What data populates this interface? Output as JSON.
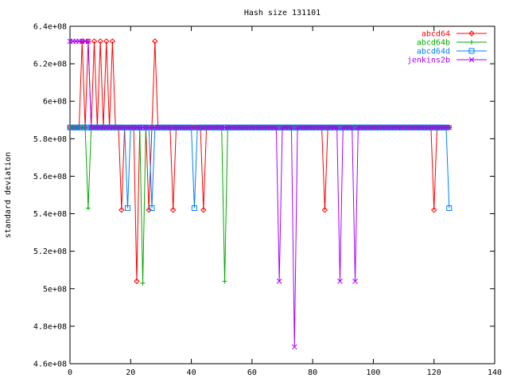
{
  "chart_data": {
    "type": "line",
    "title": "Hash size 131101",
    "xlabel": "",
    "ylabel": "standard deviation",
    "xlim": [
      0,
      140
    ],
    "ylim": [
      460000000,
      640000000
    ],
    "xticks": [
      0,
      20,
      40,
      60,
      80,
      100,
      120,
      140
    ],
    "xtick_labels": [
      "0",
      "20",
      "40",
      "60",
      "80",
      "100",
      "120",
      "140"
    ],
    "yticks": [
      460000000,
      480000000,
      500000000,
      520000000,
      540000000,
      560000000,
      580000000,
      600000000,
      620000000,
      640000000
    ],
    "ytick_labels": [
      "4.6e+08",
      "4.8e+08",
      "5e+08",
      "5.2e+08",
      "5.4e+08",
      "5.6e+08",
      "5.8e+08",
      "6e+08",
      "6.2e+08",
      "6.4e+08"
    ],
    "grid": false,
    "legend_position": "top-right",
    "series": [
      {
        "name": "abcd64",
        "color": "#ff0000",
        "marker": "diamond",
        "x": [
          0,
          1,
          2,
          3,
          4,
          5,
          6,
          7,
          8,
          9,
          10,
          11,
          12,
          13,
          14,
          15,
          16,
          17,
          18,
          19,
          20,
          21,
          22,
          23,
          24,
          25,
          26,
          27,
          28,
          29,
          30,
          31,
          32,
          33,
          34,
          35,
          36,
          37,
          38,
          39,
          40,
          41,
          42,
          43,
          44,
          45,
          46,
          47,
          48,
          49,
          50,
          51,
          52,
          53,
          54,
          55,
          56,
          57,
          58,
          59,
          60,
          61,
          62,
          63,
          64,
          65,
          66,
          67,
          68,
          69,
          70,
          71,
          72,
          73,
          74,
          75,
          76,
          77,
          78,
          79,
          80,
          81,
          82,
          83,
          84,
          85,
          86,
          87,
          88,
          89,
          90,
          91,
          92,
          93,
          94,
          95,
          96,
          97,
          98,
          99,
          100,
          101,
          102,
          103,
          104,
          105,
          106,
          107,
          108,
          109,
          110,
          111,
          112,
          113,
          114,
          115,
          116,
          117,
          118,
          119,
          120,
          121,
          122,
          123,
          124,
          125
        ],
        "y": [
          586000000,
          586000000,
          586000000,
          586000000,
          632000000,
          586000000,
          632000000,
          586000000,
          632000000,
          586000000,
          632000000,
          586000000,
          632000000,
          586000000,
          632000000,
          586000000,
          586000000,
          542000000,
          586000000,
          586000000,
          586000000,
          586000000,
          504000000,
          586000000,
          586000000,
          586000000,
          542000000,
          586000000,
          632000000,
          586000000,
          586000000,
          586000000,
          586000000,
          586000000,
          542000000,
          586000000,
          586000000,
          586000000,
          586000000,
          586000000,
          586000000,
          586000000,
          586000000,
          586000000,
          542000000,
          586000000,
          586000000,
          586000000,
          586000000,
          586000000,
          586000000,
          586000000,
          586000000,
          586000000,
          586000000,
          586000000,
          586000000,
          586000000,
          586000000,
          586000000,
          586000000,
          586000000,
          586000000,
          586000000,
          586000000,
          586000000,
          586000000,
          586000000,
          586000000,
          586000000,
          586000000,
          586000000,
          586000000,
          586000000,
          586000000,
          586000000,
          586000000,
          586000000,
          586000000,
          586000000,
          586000000,
          586000000,
          586000000,
          586000000,
          542000000,
          586000000,
          586000000,
          586000000,
          586000000,
          586000000,
          586000000,
          586000000,
          586000000,
          586000000,
          586000000,
          586000000,
          586000000,
          586000000,
          586000000,
          586000000,
          586000000,
          586000000,
          586000000,
          586000000,
          586000000,
          586000000,
          586000000,
          586000000,
          586000000,
          586000000,
          586000000,
          586000000,
          586000000,
          586000000,
          586000000,
          586000000,
          586000000,
          586000000,
          586000000,
          586000000,
          542000000,
          586000000,
          586000000,
          586000000,
          586000000,
          586000000
        ]
      },
      {
        "name": "abcd64b",
        "color": "#00aa00",
        "marker": "plus",
        "x": [
          0,
          1,
          2,
          3,
          4,
          5,
          6,
          7,
          8,
          9,
          10,
          11,
          12,
          13,
          14,
          15,
          16,
          17,
          18,
          19,
          20,
          21,
          22,
          23,
          24,
          25,
          26,
          27,
          28,
          29,
          30,
          31,
          32,
          33,
          34,
          35,
          36,
          37,
          38,
          39,
          40,
          41,
          42,
          43,
          44,
          45,
          46,
          47,
          48,
          49,
          50,
          51,
          52,
          53,
          54,
          55,
          56,
          57,
          58,
          59,
          60,
          61,
          62,
          63,
          64,
          65,
          66,
          67,
          68,
          69,
          70,
          71,
          72,
          73,
          74,
          75,
          76,
          77,
          78,
          79,
          80,
          81,
          82,
          83,
          84,
          85,
          86,
          87,
          88,
          89,
          90,
          91,
          92,
          93,
          94,
          95,
          96,
          97,
          98,
          99,
          100,
          101,
          102,
          103,
          104,
          105,
          106,
          107,
          108,
          109,
          110,
          111,
          112,
          113,
          114,
          115,
          116,
          117,
          118,
          119,
          120,
          121,
          122,
          123,
          124,
          125
        ],
        "y": [
          586000000,
          586000000,
          586000000,
          586000000,
          586000000,
          586000000,
          543000000,
          586000000,
          586000000,
          586000000,
          586000000,
          586000000,
          586000000,
          586000000,
          586000000,
          586000000,
          586000000,
          586000000,
          586000000,
          586000000,
          586000000,
          586000000,
          586000000,
          586000000,
          503000000,
          586000000,
          586000000,
          586000000,
          586000000,
          586000000,
          586000000,
          586000000,
          586000000,
          586000000,
          586000000,
          586000000,
          586000000,
          586000000,
          586000000,
          586000000,
          586000000,
          586000000,
          586000000,
          586000000,
          586000000,
          586000000,
          586000000,
          586000000,
          586000000,
          586000000,
          586000000,
          504000000,
          586000000,
          586000000,
          586000000,
          586000000,
          586000000,
          586000000,
          586000000,
          586000000,
          586000000,
          586000000,
          586000000,
          586000000,
          586000000,
          586000000,
          586000000,
          586000000,
          586000000,
          586000000,
          586000000,
          586000000,
          586000000,
          586000000,
          586000000,
          586000000,
          586000000,
          586000000,
          586000000,
          586000000,
          586000000,
          586000000,
          586000000,
          586000000,
          586000000,
          586000000,
          586000000,
          586000000,
          586000000,
          586000000,
          586000000,
          586000000,
          586000000,
          586000000,
          586000000,
          586000000,
          586000000,
          586000000,
          586000000,
          586000000,
          586000000,
          586000000,
          586000000,
          586000000,
          586000000,
          586000000,
          586000000,
          586000000,
          586000000,
          586000000,
          586000000,
          586000000,
          586000000,
          586000000,
          586000000,
          586000000,
          586000000,
          586000000,
          586000000,
          586000000,
          586000000,
          586000000,
          586000000,
          586000000,
          586000000,
          586000000
        ]
      },
      {
        "name": "abcd64d",
        "color": "#0080ff",
        "marker": "square",
        "x": [
          0,
          1,
          2,
          3,
          4,
          5,
          6,
          7,
          8,
          9,
          10,
          11,
          12,
          13,
          14,
          15,
          16,
          17,
          18,
          19,
          20,
          21,
          22,
          23,
          24,
          25,
          26,
          27,
          28,
          29,
          30,
          31,
          32,
          33,
          34,
          35,
          36,
          37,
          38,
          39,
          40,
          41,
          42,
          43,
          44,
          45,
          46,
          47,
          48,
          49,
          50,
          51,
          52,
          53,
          54,
          55,
          56,
          57,
          58,
          59,
          60,
          61,
          62,
          63,
          64,
          65,
          66,
          67,
          68,
          69,
          70,
          71,
          72,
          73,
          74,
          75,
          76,
          77,
          78,
          79,
          80,
          81,
          82,
          83,
          84,
          85,
          86,
          87,
          88,
          89,
          90,
          91,
          92,
          93,
          94,
          95,
          96,
          97,
          98,
          99,
          100,
          101,
          102,
          103,
          104,
          105,
          106,
          107,
          108,
          109,
          110,
          111,
          112,
          113,
          114,
          115,
          116,
          117,
          118,
          119,
          120,
          121,
          122,
          123,
          124,
          125
        ],
        "y": [
          586000000,
          586000000,
          586000000,
          586000000,
          586000000,
          586000000,
          586000000,
          586000000,
          586000000,
          586000000,
          586000000,
          586000000,
          586000000,
          586000000,
          586000000,
          586000000,
          586000000,
          586000000,
          586000000,
          543000000,
          586000000,
          586000000,
          586000000,
          586000000,
          586000000,
          586000000,
          586000000,
          543000000,
          586000000,
          586000000,
          586000000,
          586000000,
          586000000,
          586000000,
          586000000,
          586000000,
          586000000,
          586000000,
          586000000,
          586000000,
          586000000,
          543000000,
          586000000,
          586000000,
          586000000,
          586000000,
          586000000,
          586000000,
          586000000,
          586000000,
          586000000,
          586000000,
          586000000,
          586000000,
          586000000,
          586000000,
          586000000,
          586000000,
          586000000,
          586000000,
          586000000,
          586000000,
          586000000,
          586000000,
          586000000,
          586000000,
          586000000,
          586000000,
          586000000,
          586000000,
          586000000,
          586000000,
          586000000,
          586000000,
          586000000,
          586000000,
          586000000,
          586000000,
          586000000,
          586000000,
          586000000,
          586000000,
          586000000,
          586000000,
          586000000,
          586000000,
          586000000,
          586000000,
          586000000,
          586000000,
          586000000,
          586000000,
          586000000,
          586000000,
          586000000,
          586000000,
          586000000,
          586000000,
          586000000,
          586000000,
          586000000,
          586000000,
          586000000,
          586000000,
          586000000,
          586000000,
          586000000,
          586000000,
          586000000,
          586000000,
          586000000,
          586000000,
          586000000,
          586000000,
          586000000,
          586000000,
          586000000,
          586000000,
          586000000,
          586000000,
          586000000,
          586000000,
          586000000,
          586000000,
          586000000,
          543000000
        ]
      },
      {
        "name": "jenkins2b",
        "color": "#aa00ff",
        "marker": "x",
        "x": [
          0,
          1,
          2,
          3,
          4,
          5,
          6,
          7,
          8,
          9,
          10,
          11,
          12,
          13,
          14,
          15,
          16,
          17,
          18,
          19,
          20,
          21,
          22,
          23,
          24,
          25,
          26,
          27,
          28,
          29,
          30,
          31,
          32,
          33,
          34,
          35,
          36,
          37,
          38,
          39,
          40,
          41,
          42,
          43,
          44,
          45,
          46,
          47,
          48,
          49,
          50,
          51,
          52,
          53,
          54,
          55,
          56,
          57,
          58,
          59,
          60,
          61,
          62,
          63,
          64,
          65,
          66,
          67,
          68,
          69,
          70,
          71,
          72,
          73,
          74,
          75,
          76,
          77,
          78,
          79,
          80,
          81,
          82,
          83,
          84,
          85,
          86,
          87,
          88,
          89,
          90,
          91,
          92,
          93,
          94,
          95,
          96,
          97,
          98,
          99,
          100,
          101,
          102,
          103,
          104,
          105,
          106,
          107,
          108,
          109,
          110,
          111,
          112,
          113,
          114,
          115,
          116,
          117,
          118,
          119,
          120,
          121,
          122,
          123,
          124,
          125
        ],
        "y": [
          632000000,
          632000000,
          632000000,
          632000000,
          632000000,
          632000000,
          632000000,
          586000000,
          586000000,
          586000000,
          586000000,
          586000000,
          586000000,
          586000000,
          586000000,
          586000000,
          586000000,
          586000000,
          586000000,
          586000000,
          586000000,
          586000000,
          586000000,
          586000000,
          586000000,
          586000000,
          586000000,
          586000000,
          586000000,
          586000000,
          586000000,
          586000000,
          586000000,
          586000000,
          586000000,
          586000000,
          586000000,
          586000000,
          586000000,
          586000000,
          586000000,
          586000000,
          586000000,
          586000000,
          586000000,
          586000000,
          586000000,
          586000000,
          586000000,
          586000000,
          586000000,
          586000000,
          586000000,
          586000000,
          586000000,
          586000000,
          586000000,
          586000000,
          586000000,
          586000000,
          586000000,
          586000000,
          586000000,
          586000000,
          586000000,
          586000000,
          586000000,
          586000000,
          586000000,
          504000000,
          586000000,
          586000000,
          586000000,
          586000000,
          469000000,
          586000000,
          586000000,
          586000000,
          586000000,
          586000000,
          586000000,
          586000000,
          586000000,
          586000000,
          586000000,
          586000000,
          586000000,
          586000000,
          586000000,
          504000000,
          586000000,
          586000000,
          586000000,
          586000000,
          504000000,
          586000000,
          586000000,
          586000000,
          586000000,
          586000000,
          586000000,
          586000000,
          586000000,
          586000000,
          586000000,
          586000000,
          586000000,
          586000000,
          586000000,
          586000000,
          586000000,
          586000000,
          586000000,
          586000000,
          586000000,
          586000000,
          586000000,
          586000000,
          586000000,
          586000000,
          586000000,
          586000000,
          586000000,
          586000000,
          586000000,
          586000000
        ]
      }
    ]
  }
}
